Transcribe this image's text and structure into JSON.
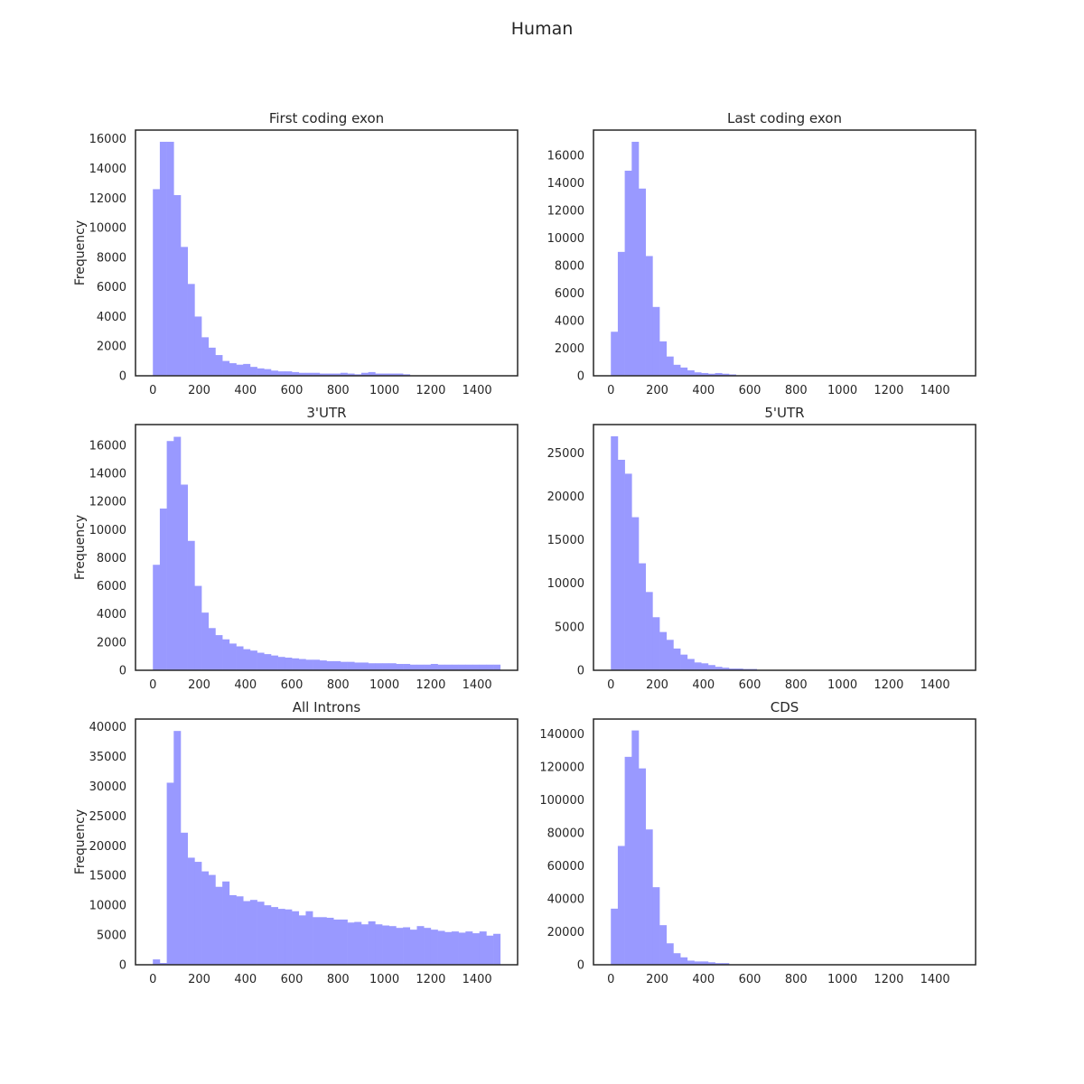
{
  "figure_title": "Human",
  "colors": {
    "bar": "#9999ff",
    "frame": "#262626",
    "text": "#262626",
    "background": "#ffffff"
  },
  "chart_data": [
    {
      "type": "bar",
      "title": "First coding exon",
      "xlabel": "",
      "ylabel": "Frequency",
      "xlim": [
        -75,
        1575
      ],
      "ylim": [
        0,
        16590
      ],
      "bin_width": 30,
      "bin_start": 0,
      "xticks": [
        "0",
        "200",
        "400",
        "600",
        "800",
        "1000",
        "1200",
        "1400"
      ],
      "yticks": [
        "0",
        "2000",
        "4000",
        "6000",
        "8000",
        "10000",
        "12000",
        "14000",
        "16000"
      ],
      "values": [
        12600,
        15800,
        15800,
        12200,
        8700,
        6200,
        4000,
        2600,
        1900,
        1400,
        1000,
        850,
        750,
        800,
        600,
        500,
        450,
        350,
        300,
        300,
        250,
        200,
        200,
        200,
        150,
        150,
        150,
        200,
        150,
        100,
        200,
        250,
        150,
        150,
        150,
        150,
        100,
        0,
        0,
        0,
        0,
        0,
        0,
        0,
        0,
        0,
        0,
        0,
        0,
        0
      ],
      "grid": false
    },
    {
      "type": "bar",
      "title": "Last coding exon",
      "xlabel": "",
      "ylabel": "",
      "xlim": [
        -75,
        1575
      ],
      "ylim": [
        0,
        17850
      ],
      "bin_width": 30,
      "bin_start": 0,
      "xticks": [
        "0",
        "200",
        "400",
        "600",
        "800",
        "1000",
        "1200",
        "1400"
      ],
      "yticks": [
        "0",
        "2000",
        "4000",
        "6000",
        "8000",
        "10000",
        "12000",
        "14000",
        "16000"
      ],
      "values": [
        3200,
        9000,
        14900,
        17000,
        13600,
        8700,
        5000,
        2500,
        1400,
        800,
        600,
        400,
        250,
        200,
        150,
        200,
        150,
        100,
        0,
        0,
        0,
        0,
        0,
        0,
        0,
        0,
        0,
        0,
        0,
        0,
        0,
        0,
        0,
        0,
        0,
        0,
        0,
        0,
        0,
        0,
        0,
        0,
        0,
        0,
        0,
        0,
        0,
        0,
        0,
        0
      ],
      "grid": false
    },
    {
      "type": "bar",
      "title": "3'UTR",
      "xlabel": "",
      "ylabel": "Frequency",
      "xlim": [
        -75,
        1575
      ],
      "ylim": [
        0,
        17470
      ],
      "bin_width": 30,
      "bin_start": 0,
      "xticks": [
        "0",
        "200",
        "400",
        "600",
        "800",
        "1000",
        "1200",
        "1400"
      ],
      "yticks": [
        "0",
        "2000",
        "4000",
        "6000",
        "8000",
        "10000",
        "12000",
        "14000",
        "16000"
      ],
      "values": [
        7500,
        11500,
        16300,
        16600,
        13200,
        9200,
        6000,
        4100,
        3000,
        2500,
        2200,
        1900,
        1700,
        1500,
        1400,
        1250,
        1150,
        1050,
        950,
        900,
        850,
        800,
        750,
        750,
        700,
        650,
        650,
        600,
        600,
        550,
        550,
        500,
        500,
        500,
        500,
        450,
        450,
        400,
        400,
        400,
        450,
        400,
        400,
        400,
        400,
        400,
        400,
        400,
        400,
        400
      ],
      "grid": false
    },
    {
      "type": "bar",
      "title": "5'UTR",
      "xlabel": "",
      "ylabel": "",
      "xlim": [
        -75,
        1575
      ],
      "ylim": [
        0,
        28250
      ],
      "bin_width": 30,
      "bin_start": 0,
      "xticks": [
        "0",
        "200",
        "400",
        "600",
        "800",
        "1000",
        "1200",
        "1400"
      ],
      "yticks": [
        "0",
        "5000",
        "10000",
        "15000",
        "20000",
        "25000"
      ],
      "values": [
        26900,
        24200,
        22600,
        17600,
        12300,
        9000,
        6100,
        4400,
        3500,
        2500,
        1800,
        1300,
        900,
        800,
        600,
        400,
        300,
        200,
        200,
        150,
        150,
        0,
        0,
        0,
        0,
        0,
        0,
        0,
        0,
        0,
        0,
        0,
        0,
        0,
        0,
        0,
        0,
        0,
        0,
        0,
        0,
        0,
        0,
        0,
        0,
        0,
        0,
        0,
        0,
        0
      ],
      "grid": false
    },
    {
      "type": "bar",
      "title": "All Introns",
      "xlabel": "",
      "ylabel": "Frequency",
      "xlim": [
        -75,
        1575
      ],
      "ylim": [
        0,
        41300
      ],
      "bin_width": 30,
      "bin_start": 0,
      "xticks": [
        "0",
        "200",
        "400",
        "600",
        "800",
        "1000",
        "1200",
        "1400"
      ],
      "yticks": [
        "0",
        "5000",
        "10000",
        "15000",
        "20000",
        "25000",
        "30000",
        "35000",
        "40000"
      ],
      "values": [
        900,
        300,
        30600,
        39300,
        22200,
        18000,
        17300,
        15700,
        15100,
        13100,
        14000,
        11700,
        11500,
        10700,
        10900,
        10600,
        10000,
        9700,
        9400,
        9300,
        9000,
        8300,
        9000,
        8000,
        8000,
        7900,
        7600,
        7600,
        7100,
        7200,
        6800,
        7300,
        6800,
        6600,
        6500,
        6200,
        6300,
        5900,
        6500,
        6200,
        5900,
        5700,
        5500,
        5600,
        5400,
        5600,
        5300,
        5600,
        4900,
        5200
      ],
      "grid": false
    },
    {
      "type": "bar",
      "title": "CDS",
      "xlabel": "",
      "ylabel": "",
      "xlim": [
        -75,
        1575
      ],
      "ylim": [
        0,
        148900
      ],
      "bin_width": 30,
      "bin_start": 0,
      "xticks": [
        "0",
        "200",
        "400",
        "600",
        "800",
        "1000",
        "1200",
        "1400"
      ],
      "yticks": [
        "0",
        "20000",
        "40000",
        "60000",
        "80000",
        "100000",
        "120000",
        "140000"
      ],
      "values": [
        34000,
        72000,
        126000,
        142000,
        119000,
        82000,
        47000,
        24000,
        13000,
        7000,
        4500,
        2500,
        2000,
        2000,
        1500,
        1000,
        1000,
        0,
        0,
        0,
        0,
        0,
        0,
        0,
        0,
        0,
        0,
        0,
        0,
        0,
        0,
        0,
        0,
        0,
        0,
        0,
        0,
        0,
        0,
        0,
        0,
        0,
        0,
        0,
        0,
        0,
        0,
        0,
        0,
        0
      ],
      "grid": false
    }
  ]
}
